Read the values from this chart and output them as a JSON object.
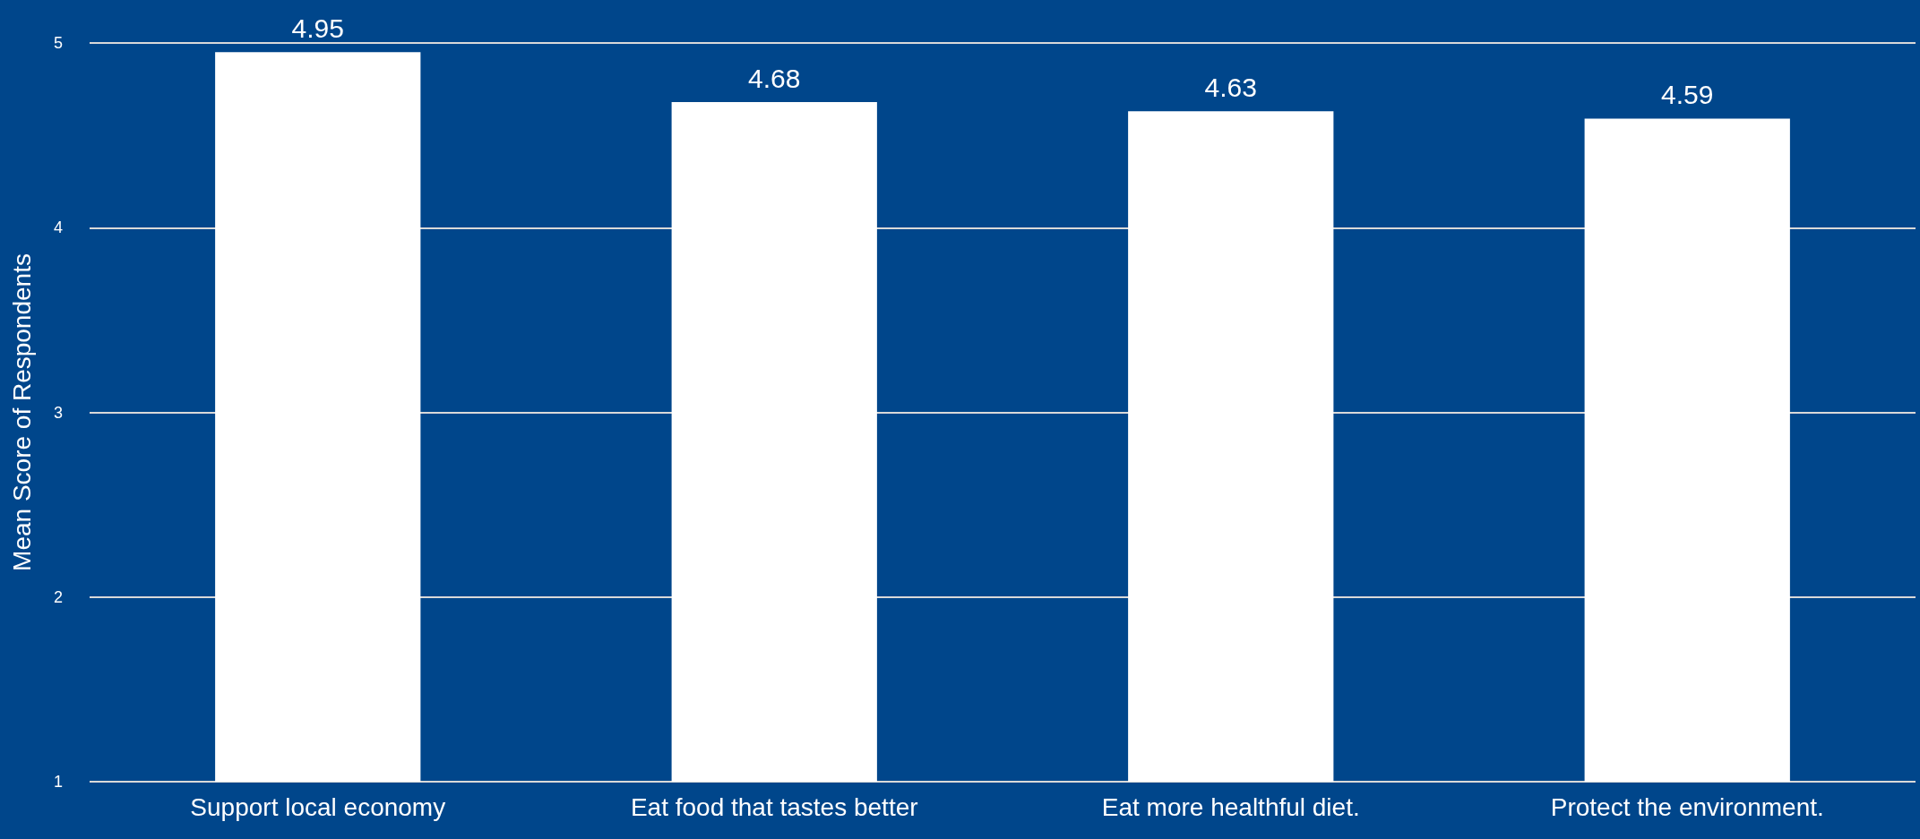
{
  "chart_data": {
    "type": "bar",
    "ylabel": "Mean Score of Respondents",
    "categories": [
      "Support local economy",
      "Eat food that tastes better",
      "Eat more healthful diet.",
      "Protect the environment."
    ],
    "values": [
      4.95,
      4.68,
      4.63,
      4.59
    ],
    "color": "#ffffff",
    "ylim": [
      1,
      5
    ],
    "yticks": [
      1,
      2,
      3,
      4,
      5
    ],
    "grid": "y",
    "data_labels": true
  }
}
